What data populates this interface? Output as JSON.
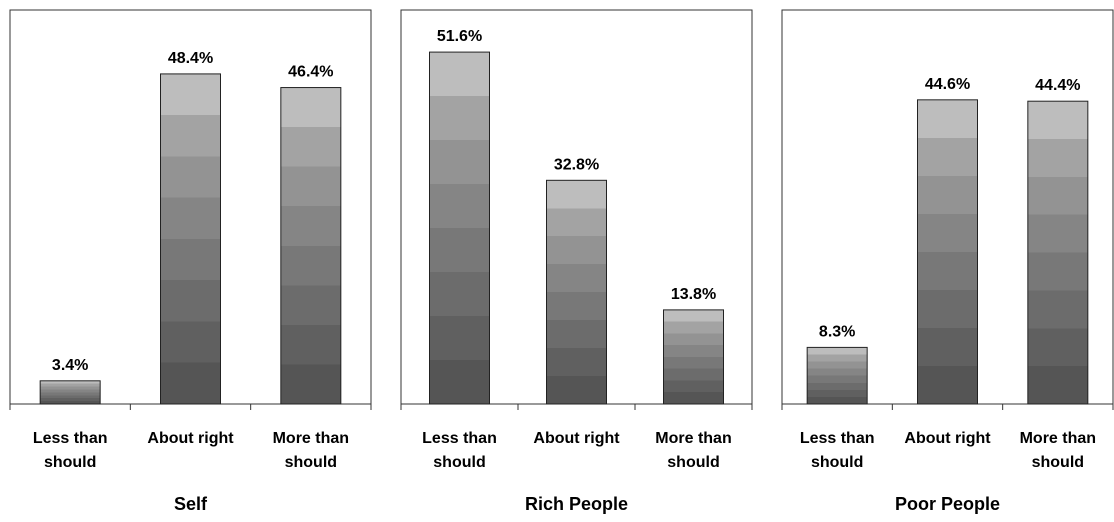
{
  "chart_data": [
    {
      "type": "bar",
      "title": "Self",
      "categories": [
        "Less than should",
        "About right",
        "More than should"
      ],
      "category_lines": [
        [
          "Less than",
          "should"
        ],
        [
          "About right"
        ],
        [
          "More than",
          "should"
        ]
      ],
      "values": [
        3.4,
        48.4,
        46.4
      ],
      "value_labels": [
        "3.4%",
        "48.4%",
        "46.4%"
      ],
      "ylim": [
        0,
        54
      ]
    },
    {
      "type": "bar",
      "title": "Rich People",
      "categories": [
        "Less than should",
        "About right",
        "More than should"
      ],
      "category_lines": [
        [
          "Less than",
          "should"
        ],
        [
          "About right"
        ],
        [
          "More than",
          "should"
        ]
      ],
      "values": [
        51.6,
        32.8,
        13.8
      ],
      "value_labels": [
        "51.6%",
        "32.8%",
        "13.8%"
      ],
      "ylim": [
        0,
        54
      ]
    },
    {
      "type": "bar",
      "title": "Poor People",
      "categories": [
        "Less than should",
        "About right",
        "More than should"
      ],
      "category_lines": [
        [
          "Less than",
          "should"
        ],
        [
          "About right"
        ],
        [
          "More than",
          "should"
        ]
      ],
      "values": [
        8.3,
        44.6,
        44.4
      ],
      "value_labels": [
        "8.3%",
        "44.6%",
        "44.4%"
      ],
      "ylim": [
        0,
        54
      ]
    }
  ],
  "colors": {
    "bar_gradient": [
      "#555555",
      "#606060",
      "#6c6c6c",
      "#787878",
      "#858585",
      "#939393",
      "#a3a3a3",
      "#bdbdbd"
    ],
    "frame": "#333333"
  }
}
